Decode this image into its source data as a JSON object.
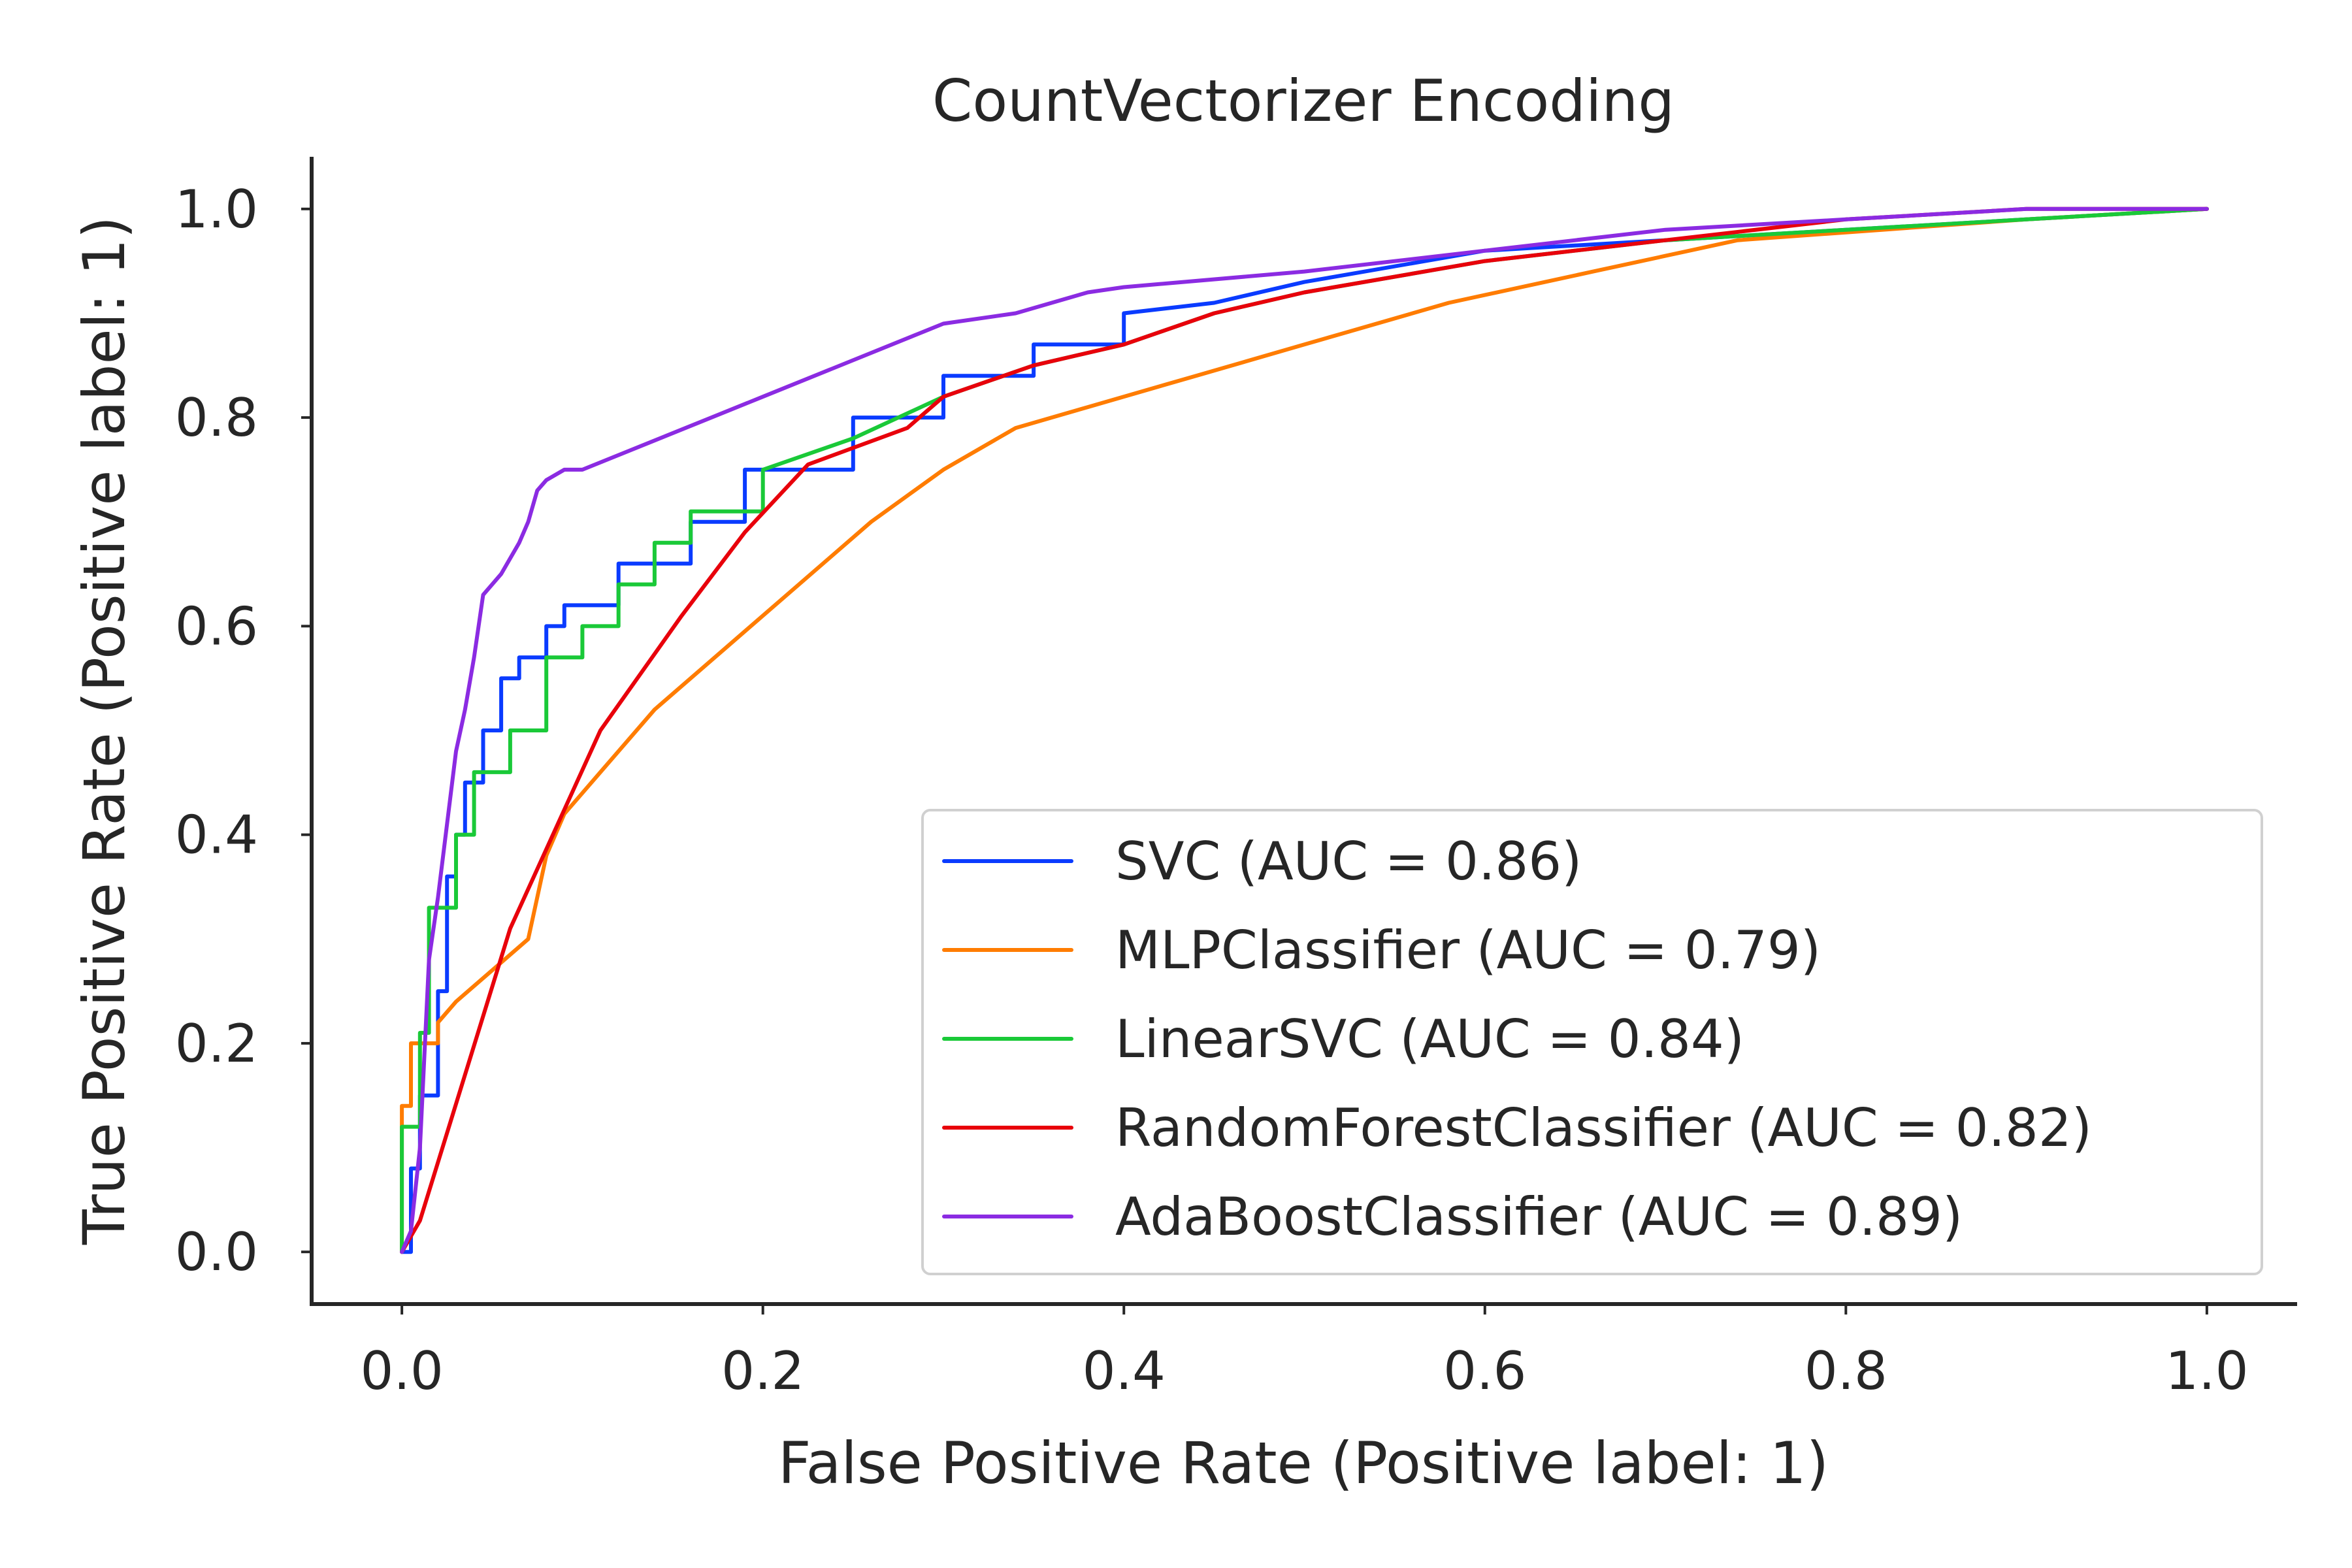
{
  "chart_data": {
    "type": "line",
    "title": "CountVectorizer Encoding",
    "xlabel": "False Positive Rate (Positive label: 1)",
    "ylabel": "True Positive Rate (Positive label: 1)",
    "xlim": [
      -0.05,
      1.05
    ],
    "ylim": [
      -0.05,
      1.05
    ],
    "xticks": [
      0.0,
      0.2,
      0.4,
      0.6,
      0.8,
      1.0
    ],
    "yticks": [
      0.0,
      0.2,
      0.4,
      0.6,
      0.8,
      1.0
    ],
    "xtick_labels": [
      "0.0",
      "0.2",
      "0.4",
      "0.6",
      "0.8",
      "1.0"
    ],
    "ytick_labels": [
      "0.0",
      "0.2",
      "0.4",
      "0.6",
      "0.8",
      "1.0"
    ],
    "grid": false,
    "legend_position": "lower-right",
    "series": [
      {
        "name": "SVC (AUC = 0.86)",
        "color": "#0a3bff",
        "x": [
          0.0,
          0.005,
          0.005,
          0.01,
          0.01,
          0.02,
          0.02,
          0.025,
          0.025,
          0.03,
          0.03,
          0.035,
          0.035,
          0.045,
          0.045,
          0.055,
          0.055,
          0.065,
          0.065,
          0.08,
          0.08,
          0.09,
          0.09,
          0.12,
          0.12,
          0.16,
          0.16,
          0.19,
          0.19,
          0.25,
          0.25,
          0.3,
          0.3,
          0.35,
          0.35,
          0.4,
          0.4,
          0.45,
          0.5,
          0.6,
          0.7,
          0.8,
          0.9,
          1.0
        ],
        "y": [
          0.0,
          0.0,
          0.08,
          0.08,
          0.15,
          0.15,
          0.25,
          0.25,
          0.36,
          0.36,
          0.4,
          0.4,
          0.45,
          0.45,
          0.5,
          0.5,
          0.55,
          0.55,
          0.57,
          0.57,
          0.6,
          0.6,
          0.62,
          0.62,
          0.66,
          0.66,
          0.7,
          0.7,
          0.75,
          0.75,
          0.8,
          0.8,
          0.84,
          0.84,
          0.87,
          0.87,
          0.9,
          0.91,
          0.93,
          0.96,
          0.97,
          0.98,
          0.99,
          1.0
        ]
      },
      {
        "name": "MLPClassifier (AUC = 0.79)",
        "color": "#ff7c00",
        "x": [
          0.0,
          0.0,
          0.005,
          0.005,
          0.02,
          0.02,
          0.03,
          0.05,
          0.07,
          0.08,
          0.09,
          0.11,
          0.14,
          0.18,
          0.22,
          0.26,
          0.3,
          0.34,
          0.38,
          0.44,
          0.5,
          0.58,
          0.66,
          0.74,
          0.82,
          0.9,
          1.0
        ],
        "y": [
          0.0,
          0.14,
          0.14,
          0.2,
          0.2,
          0.22,
          0.24,
          0.27,
          0.3,
          0.38,
          0.42,
          0.46,
          0.52,
          0.58,
          0.64,
          0.7,
          0.75,
          0.79,
          0.81,
          0.84,
          0.87,
          0.91,
          0.94,
          0.97,
          0.98,
          0.99,
          1.0
        ]
      },
      {
        "name": "LinearSVC (AUC = 0.84)",
        "color": "#1ac938",
        "x": [
          0.0,
          0.0,
          0.01,
          0.01,
          0.015,
          0.015,
          0.03,
          0.03,
          0.04,
          0.04,
          0.06,
          0.06,
          0.08,
          0.08,
          0.1,
          0.1,
          0.12,
          0.12,
          0.14,
          0.14,
          0.16,
          0.16,
          0.2,
          0.2,
          0.25,
          0.3,
          0.35,
          0.4,
          0.45,
          0.5,
          0.6,
          0.7,
          0.8,
          0.9,
          1.0
        ],
        "y": [
          0.0,
          0.12,
          0.12,
          0.21,
          0.21,
          0.33,
          0.33,
          0.4,
          0.4,
          0.46,
          0.46,
          0.5,
          0.5,
          0.57,
          0.57,
          0.6,
          0.6,
          0.64,
          0.64,
          0.68,
          0.68,
          0.71,
          0.71,
          0.75,
          0.78,
          0.82,
          0.85,
          0.87,
          0.9,
          0.92,
          0.95,
          0.97,
          0.98,
          0.99,
          1.0
        ]
      },
      {
        "name": "RandomForestClassifier (AUC = 0.82)",
        "color": "#e8000b",
        "x": [
          0.0,
          0.01,
          0.06,
          0.11,
          0.155,
          0.19,
          0.225,
          0.28,
          0.3,
          0.35,
          0.4,
          0.45,
          0.5,
          0.6,
          0.7,
          0.8,
          0.9,
          1.0
        ],
        "y": [
          0.0,
          0.03,
          0.31,
          0.5,
          0.61,
          0.69,
          0.755,
          0.79,
          0.82,
          0.85,
          0.87,
          0.9,
          0.92,
          0.95,
          0.97,
          0.99,
          1.0,
          1.0
        ]
      },
      {
        "name": "AdaBoostClassifier (AUC = 0.89)",
        "color": "#8b2be2",
        "x": [
          0.0,
          0.005,
          0.01,
          0.015,
          0.02,
          0.03,
          0.035,
          0.04,
          0.045,
          0.055,
          0.065,
          0.07,
          0.075,
          0.08,
          0.09,
          0.1,
          0.2,
          0.3,
          0.34,
          0.38,
          0.4,
          0.5,
          0.6,
          0.7,
          0.8,
          0.9,
          1.0
        ],
        "y": [
          0.0,
          0.02,
          0.1,
          0.28,
          0.34,
          0.48,
          0.52,
          0.57,
          0.63,
          0.65,
          0.68,
          0.7,
          0.73,
          0.74,
          0.75,
          0.75,
          0.82,
          0.89,
          0.9,
          0.92,
          0.925,
          0.94,
          0.96,
          0.98,
          0.99,
          1.0,
          1.0
        ]
      }
    ]
  }
}
